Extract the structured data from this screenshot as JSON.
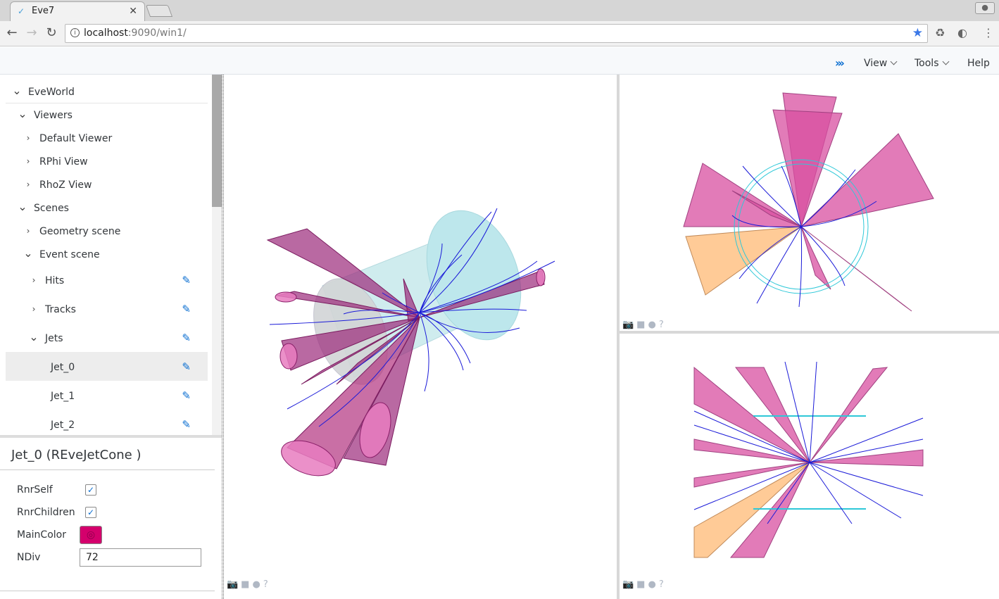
{
  "browser": {
    "tab_title": "Eve7",
    "url_host": "localhost",
    "url_rest": ":9090/win1/"
  },
  "menubar": {
    "items": [
      "View",
      "Tools",
      "Help"
    ]
  },
  "tree": {
    "rows": [
      {
        "label": "EveWorld",
        "arrow": "expanded",
        "depth": 0
      },
      {
        "label": "Viewers",
        "arrow": "expanded",
        "depth": 1
      },
      {
        "label": "Default Viewer",
        "arrow": "collapsed",
        "depth": 2
      },
      {
        "label": "RPhi View",
        "arrow": "collapsed",
        "depth": 2
      },
      {
        "label": "RhoZ View",
        "arrow": "collapsed",
        "depth": 2
      },
      {
        "label": "Scenes",
        "arrow": "expanded",
        "depth": 1
      },
      {
        "label": "Geometry scene",
        "arrow": "collapsed",
        "depth": 2
      },
      {
        "label": "Event scene",
        "arrow": "expanded",
        "depth": 2
      },
      {
        "label": "Hits",
        "arrow": "collapsed",
        "depth": 3,
        "editable": true
      },
      {
        "label": "Tracks",
        "arrow": "collapsed",
        "depth": 3,
        "editable": true
      },
      {
        "label": "Jets",
        "arrow": "expanded",
        "depth": 3,
        "editable": true
      },
      {
        "label": "Jet_0",
        "arrow": "none",
        "depth": 4,
        "editable": true,
        "selected": true
      },
      {
        "label": "Jet_1",
        "arrow": "none",
        "depth": 4,
        "editable": true
      },
      {
        "label": "Jet_2",
        "arrow": "none",
        "depth": 4,
        "editable": true
      }
    ]
  },
  "properties": {
    "title": "Jet_0 (REveJetCone )",
    "rnr_self_label": "RnrSelf",
    "rnr_self": true,
    "rnr_children_label": "RnrChildren",
    "rnr_children": true,
    "main_color_label": "MainColor",
    "main_color": "#d4006c",
    "ndiv_label": "NDiv",
    "ndiv_value": "72"
  },
  "colors": {
    "accent": "#0a6ed1",
    "jet": "#c2387e",
    "track": "#1010d0",
    "geometry": "#9fe0e6"
  }
}
